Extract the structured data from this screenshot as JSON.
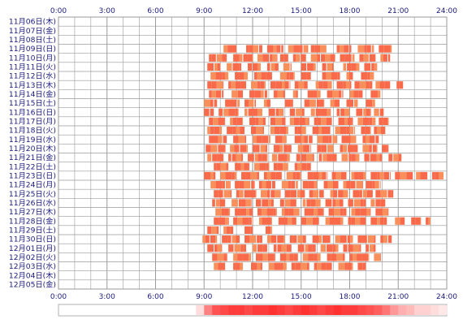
{
  "chart_data": {
    "type": "timeline-heatmap",
    "title": "",
    "xlabel": "",
    "ylabel": "",
    "x_range_hours": [
      0,
      24
    ],
    "x_ticks": [
      "0:00",
      "3:00",
      "6:00",
      "9:00",
      "12:00",
      "15:00",
      "18:00",
      "21:00",
      "24:00"
    ],
    "grid": true,
    "colors": {
      "bar_main": "#f96a4a",
      "bar_alt": "#f98f5a",
      "grid": "#9a9a9a",
      "density_low": "#ffffff",
      "density_high": "#ff1a1a"
    },
    "rows": [
      {
        "label": "11月06日(木)",
        "segments": []
      },
      {
        "label": "11月07日(金)",
        "segments": []
      },
      {
        "label": "11月08日(土)",
        "segments": []
      },
      {
        "label": "11月09日(日)",
        "segments": [
          [
            10.2,
            11.0
          ],
          [
            11.6,
            12.6
          ],
          [
            12.9,
            13.9
          ],
          [
            14.2,
            15.4
          ],
          [
            15.6,
            16.6
          ],
          [
            17.2,
            18.1
          ],
          [
            18.5,
            19.5
          ],
          [
            19.8,
            20.6
          ]
        ]
      },
      {
        "label": "11月10日(月)",
        "segments": [
          [
            9.3,
            10.4
          ],
          [
            10.8,
            12.0
          ],
          [
            12.3,
            13.5
          ],
          [
            13.7,
            14.2
          ],
          [
            14.5,
            15.3
          ],
          [
            15.6,
            17.1
          ],
          [
            17.4,
            18.3
          ],
          [
            18.6,
            19.6
          ],
          [
            19.9,
            20.5
          ]
        ]
      },
      {
        "label": "11月11日(火)",
        "segments": [
          [
            9.2,
            10.0
          ],
          [
            10.4,
            11.3
          ],
          [
            11.7,
            12.5
          ],
          [
            12.9,
            13.6
          ],
          [
            13.9,
            14.4
          ],
          [
            15.0,
            15.9
          ],
          [
            16.3,
            17.0
          ],
          [
            17.6,
            18.6
          ],
          [
            18.9,
            19.7
          ]
        ]
      },
      {
        "label": "11月12日(水)",
        "segments": [
          [
            9.4,
            10.5
          ],
          [
            10.9,
            11.7
          ],
          [
            12.1,
            13.2
          ],
          [
            13.7,
            14.6
          ],
          [
            15.0,
            15.6
          ],
          [
            16.3,
            17.4
          ],
          [
            17.8,
            18.2
          ],
          [
            18.7,
            19.5
          ]
        ]
      },
      {
        "label": "11月13日(木)",
        "segments": [
          [
            9.2,
            10.2
          ],
          [
            10.5,
            11.6
          ],
          [
            11.9,
            12.8
          ],
          [
            13.1,
            14.3
          ],
          [
            14.6,
            15.4
          ],
          [
            15.9,
            16.9
          ],
          [
            17.2,
            18.1
          ],
          [
            18.3,
            19.4
          ],
          [
            19.6,
            20.5
          ],
          [
            20.9,
            21.3
          ]
        ]
      },
      {
        "label": "11月14日(金)",
        "segments": [
          [
            9.3,
            10.2
          ],
          [
            10.7,
            11.4
          ],
          [
            11.8,
            12.9
          ],
          [
            13.3,
            14.0
          ],
          [
            14.5,
            14.8
          ],
          [
            15.4,
            16.2
          ],
          [
            16.6,
            17.6
          ],
          [
            18.0,
            18.8
          ],
          [
            19.3,
            19.9
          ]
        ]
      },
      {
        "label": "11月15日(土)",
        "segments": [
          [
            9.0,
            9.8
          ],
          [
            10.3,
            11.2
          ],
          [
            11.5,
            12.2
          ],
          [
            12.7,
            13.1
          ],
          [
            14.0,
            14.5
          ],
          [
            15.2,
            16.4
          ],
          [
            16.8,
            17.4
          ],
          [
            17.8,
            18.5
          ],
          [
            19.0,
            19.6
          ]
        ]
      },
      {
        "label": "11月16日(日)",
        "segments": [
          [
            9.0,
            9.6
          ],
          [
            9.9,
            11.1
          ],
          [
            11.5,
            12.6
          ],
          [
            13.0,
            13.9
          ],
          [
            14.3,
            15.2
          ],
          [
            15.6,
            16.8
          ],
          [
            17.2,
            18.0
          ],
          [
            18.4,
            19.3
          ],
          [
            19.5,
            20.1
          ]
        ]
      },
      {
        "label": "11月17日(月)",
        "segments": [
          [
            9.3,
            10.3
          ],
          [
            10.6,
            11.4
          ],
          [
            11.8,
            12.8
          ],
          [
            13.1,
            14.0
          ],
          [
            14.3,
            15.5
          ],
          [
            15.8,
            16.9
          ],
          [
            17.3,
            18.2
          ],
          [
            18.5,
            19.6
          ],
          [
            19.8,
            20.4
          ]
        ]
      },
      {
        "label": "11月18日(火)",
        "segments": [
          [
            9.2,
            10.1
          ],
          [
            10.4,
            11.5
          ],
          [
            11.9,
            12.7
          ],
          [
            13.1,
            14.2
          ],
          [
            14.6,
            15.3
          ],
          [
            15.7,
            16.8
          ],
          [
            17.1,
            18.3
          ],
          [
            18.7,
            19.3
          ],
          [
            19.5,
            20.2
          ]
        ]
      },
      {
        "label": "11月19日(水)",
        "segments": [
          [
            9.3,
            10.4
          ],
          [
            10.8,
            11.6
          ],
          [
            12.0,
            13.1
          ],
          [
            13.4,
            14.1
          ],
          [
            14.6,
            15.7
          ],
          [
            16.0,
            17.2
          ],
          [
            17.5,
            18.4
          ],
          [
            18.8,
            19.8
          ]
        ]
      },
      {
        "label": "11月20日(木)",
        "segments": [
          [
            9.1,
            10.3
          ],
          [
            10.6,
            11.7
          ],
          [
            12.0,
            12.9
          ],
          [
            13.3,
            14.4
          ],
          [
            14.8,
            15.6
          ],
          [
            16.0,
            17.0
          ],
          [
            17.4,
            18.5
          ],
          [
            18.8,
            19.7
          ],
          [
            20.0,
            20.4
          ]
        ]
      },
      {
        "label": "11月21日(金)",
        "segments": [
          [
            9.2,
            10.2
          ],
          [
            10.5,
            11.4
          ],
          [
            11.7,
            12.9
          ],
          [
            13.2,
            14.3
          ],
          [
            14.7,
            15.8
          ],
          [
            16.1,
            17.2
          ],
          [
            17.5,
            18.6
          ],
          [
            18.9,
            20.0
          ],
          [
            20.4,
            21.2
          ]
        ]
      },
      {
        "label": "11月22日(土)",
        "segments": [
          [
            9.6,
            10.5
          ],
          [
            10.9,
            11.8
          ],
          [
            12.1,
            13.0
          ],
          [
            13.3,
            14.2
          ],
          [
            14.6,
            15.6
          ]
        ]
      },
      {
        "label": "11月23日(日)",
        "segments": [
          [
            9.0,
            9.7
          ],
          [
            10.0,
            11.0
          ],
          [
            11.3,
            12.4
          ],
          [
            12.7,
            13.8
          ],
          [
            14.1,
            15.0
          ],
          [
            15.4,
            16.6
          ],
          [
            16.9,
            17.8
          ],
          [
            18.1,
            19.0
          ],
          [
            19.3,
            20.5
          ],
          [
            20.8,
            21.9
          ],
          [
            22.1,
            22.8
          ],
          [
            23.1,
            23.8
          ]
        ]
      },
      {
        "label": "11月24日(月)",
        "segments": [
          [
            9.4,
            10.6
          ],
          [
            10.9,
            12.1
          ],
          [
            12.4,
            13.4
          ],
          [
            13.8,
            14.8
          ],
          [
            15.1,
            16.0
          ],
          [
            16.4,
            17.3
          ],
          [
            17.6,
            18.8
          ],
          [
            19.0,
            19.9
          ]
        ]
      },
      {
        "label": "11月25日(火)",
        "segments": [
          [
            9.6,
            10.7
          ],
          [
            11.0,
            12.2
          ],
          [
            12.5,
            13.7
          ],
          [
            14.0,
            15.2
          ],
          [
            15.5,
            16.4
          ],
          [
            16.8,
            17.9
          ],
          [
            18.2,
            19.4
          ],
          [
            19.6,
            20.7
          ]
        ]
      },
      {
        "label": "11月26日(水)",
        "segments": [
          [
            9.5,
            10.3
          ],
          [
            10.7,
            11.9
          ],
          [
            12.2,
            13.3
          ],
          [
            13.7,
            14.7
          ],
          [
            15.1,
            16.2
          ],
          [
            16.5,
            17.6
          ],
          [
            17.9,
            19.0
          ],
          [
            19.3,
            20.2
          ]
        ]
      },
      {
        "label": "11月27日(木)",
        "segments": [
          [
            9.7,
            10.6
          ],
          [
            10.9,
            12.0
          ],
          [
            12.3,
            13.5
          ],
          [
            13.8,
            14.9
          ],
          [
            15.2,
            16.4
          ],
          [
            16.7,
            17.8
          ],
          [
            18.1,
            19.3
          ],
          [
            19.6,
            20.4
          ]
        ]
      },
      {
        "label": "11月28日(金)",
        "segments": [
          [
            9.6,
            10.5
          ],
          [
            10.8,
            12.0
          ],
          [
            12.4,
            13.2
          ],
          [
            13.6,
            14.7
          ],
          [
            15.0,
            16.1
          ],
          [
            16.5,
            17.6
          ],
          [
            17.9,
            19.0
          ],
          [
            19.3,
            20.3
          ],
          [
            20.8,
            21.4
          ],
          [
            21.8,
            22.4
          ],
          [
            22.7,
            23.0
          ]
        ]
      },
      {
        "label": "11月29日(土)",
        "segments": [
          [
            9.2,
            9.9
          ],
          [
            10.2,
            10.8
          ],
          [
            11.5,
            12.0
          ],
          [
            12.8,
            13.2
          ]
        ]
      },
      {
        "label": "11月30日(日)",
        "segments": [
          [
            8.9,
            9.8
          ],
          [
            10.1,
            11.2
          ],
          [
            11.5,
            12.6
          ],
          [
            12.9,
            14.0
          ],
          [
            14.3,
            15.3
          ],
          [
            15.7,
            16.8
          ],
          [
            17.1,
            18.2
          ],
          [
            18.5,
            19.6
          ],
          [
            19.9,
            20.6
          ]
        ]
      },
      {
        "label": "12月01日(月)",
        "segments": [
          [
            9.2,
            10.1
          ],
          [
            10.5,
            11.6
          ],
          [
            12.0,
            12.9
          ],
          [
            13.3,
            14.4
          ],
          [
            14.8,
            15.9
          ],
          [
            16.2,
            17.3
          ],
          [
            17.6,
            18.7
          ],
          [
            19.0,
            19.6
          ]
        ]
      },
      {
        "label": "12月02日(火)",
        "segments": [
          [
            9.5,
            10.4
          ],
          [
            10.8,
            11.9
          ],
          [
            12.2,
            13.4
          ],
          [
            13.7,
            14.8
          ],
          [
            15.1,
            16.2
          ],
          [
            16.6,
            17.7
          ],
          [
            18.0,
            19.2
          ],
          [
            19.5,
            19.9
          ]
        ]
      },
      {
        "label": "12月03日(水)",
        "segments": [
          [
            9.6,
            10.3
          ],
          [
            10.8,
            11.4
          ],
          [
            11.9,
            12.6
          ],
          [
            13.0,
            14.1
          ],
          [
            14.4,
            15.5
          ],
          [
            15.8,
            16.9
          ],
          [
            17.3,
            18.2
          ],
          [
            18.5,
            19.0
          ]
        ]
      },
      {
        "label": "12月04日(木)",
        "segments": []
      },
      {
        "label": "12月05日(金)",
        "segments": []
      }
    ],
    "density_strip": [
      0,
      0,
      0,
      0,
      0,
      0,
      0,
      0,
      0,
      0,
      0,
      0,
      0,
      0,
      0,
      0,
      0,
      0.15,
      0.55,
      0.75,
      0.8,
      0.85,
      0.85,
      0.8,
      0.85,
      0.85,
      0.9,
      0.85,
      0.8,
      0.85,
      0.9,
      0.85,
      0.8,
      0.85,
      0.9,
      0.85,
      0.85,
      0.8,
      0.75,
      0.7,
      0.6,
      0.45,
      0.35,
      0.3,
      0.2,
      0.2,
      0.15,
      0.1
    ]
  }
}
